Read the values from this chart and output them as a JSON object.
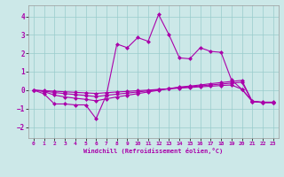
{
  "xlabel": "Windchill (Refroidissement éolien,°C)",
  "background_color": "#cce8e8",
  "grid_color": "#99cccc",
  "line_color": "#aa00aa",
  "xlim": [
    -0.5,
    23.5
  ],
  "ylim": [
    -2.6,
    4.6
  ],
  "yticks": [
    -2,
    -1,
    0,
    1,
    2,
    3,
    4
  ],
  "xticks": [
    0,
    1,
    2,
    3,
    4,
    5,
    6,
    7,
    8,
    9,
    10,
    11,
    12,
    13,
    14,
    15,
    16,
    17,
    18,
    19,
    20,
    21,
    22,
    23
  ],
  "line1_x": [
    0,
    1,
    2,
    3,
    4,
    5,
    6,
    7,
    8,
    9,
    10,
    11,
    12,
    13,
    14,
    15,
    16,
    17,
    18,
    19,
    20,
    21,
    22,
    23
  ],
  "line1_y": [
    0.0,
    -0.2,
    -0.75,
    -0.75,
    -0.8,
    -0.8,
    -1.55,
    -0.25,
    2.5,
    2.3,
    2.85,
    2.65,
    4.1,
    3.0,
    1.75,
    1.7,
    2.3,
    2.1,
    2.05,
    0.55,
    0.05,
    -0.6,
    -0.65,
    -0.65
  ],
  "line2_x": [
    0,
    1,
    2,
    3,
    4,
    5,
    6,
    7,
    8,
    9,
    10,
    11,
    12,
    13,
    14,
    15,
    16,
    17,
    18,
    19,
    20,
    21,
    22,
    23
  ],
  "line2_y": [
    0.0,
    -0.03,
    -0.06,
    -0.09,
    -0.12,
    -0.15,
    -0.18,
    -0.14,
    -0.1,
    -0.07,
    -0.03,
    0.0,
    0.04,
    0.07,
    0.11,
    0.14,
    0.18,
    0.21,
    0.25,
    0.28,
    0.05,
    -0.62,
    -0.67,
    -0.67
  ],
  "line3_x": [
    0,
    1,
    2,
    3,
    4,
    5,
    6,
    7,
    8,
    9,
    10,
    11,
    12,
    13,
    14,
    15,
    16,
    17,
    18,
    19,
    20,
    21,
    22,
    23
  ],
  "line3_y": [
    0.0,
    -0.05,
    -0.13,
    -0.19,
    -0.24,
    -0.29,
    -0.35,
    -0.28,
    -0.22,
    -0.16,
    -0.1,
    -0.04,
    0.02,
    0.08,
    0.14,
    0.18,
    0.23,
    0.28,
    0.33,
    0.38,
    0.43,
    -0.62,
    -0.67,
    -0.67
  ],
  "line4_x": [
    0,
    1,
    2,
    3,
    4,
    5,
    6,
    7,
    8,
    9,
    10,
    11,
    12,
    13,
    14,
    15,
    16,
    17,
    18,
    19,
    20,
    21,
    22,
    23
  ],
  "line4_y": [
    0.0,
    -0.08,
    -0.27,
    -0.37,
    -0.44,
    -0.5,
    -0.58,
    -0.47,
    -0.37,
    -0.28,
    -0.19,
    -0.1,
    -0.01,
    0.08,
    0.17,
    0.22,
    0.28,
    0.35,
    0.41,
    0.47,
    0.53,
    -0.62,
    -0.67,
    -0.67
  ]
}
